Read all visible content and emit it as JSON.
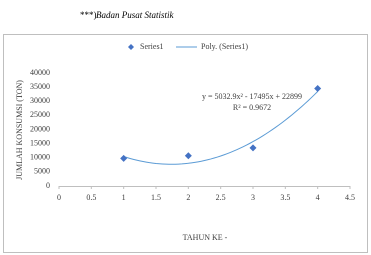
{
  "note_marker": "***)",
  "note": "Badan Pusat Statistik",
  "chart_data": {
    "type": "scatter",
    "x_label": "TAHUN KE -",
    "y_label": "JUMLAH KONSUMSI (TON)",
    "series": [
      {
        "name": "Series1",
        "color": "#4472c4",
        "x": [
          1,
          2,
          3,
          4
        ],
        "values": [
          9800,
          10700,
          13500,
          34500
        ]
      }
    ],
    "trendline": {
      "name": "Poly. (Series1)",
      "color": "#5b9bd5",
      "coefficients": [
        5032.9,
        -17495,
        22899
      ],
      "equation": "y = 5032.9x² - 17495x + 22899",
      "r2_label": "R² = 0.9672"
    },
    "xlim": [
      0,
      4.5
    ],
    "xticks": [
      0,
      0.5,
      1,
      1.5,
      2,
      2.5,
      3,
      3.5,
      4,
      4.5
    ],
    "ylim": [
      0,
      40000
    ],
    "yticks": [
      0,
      5000,
      10000,
      15000,
      20000,
      25000,
      30000,
      35000,
      40000
    ],
    "grid": false,
    "legend": "top"
  }
}
